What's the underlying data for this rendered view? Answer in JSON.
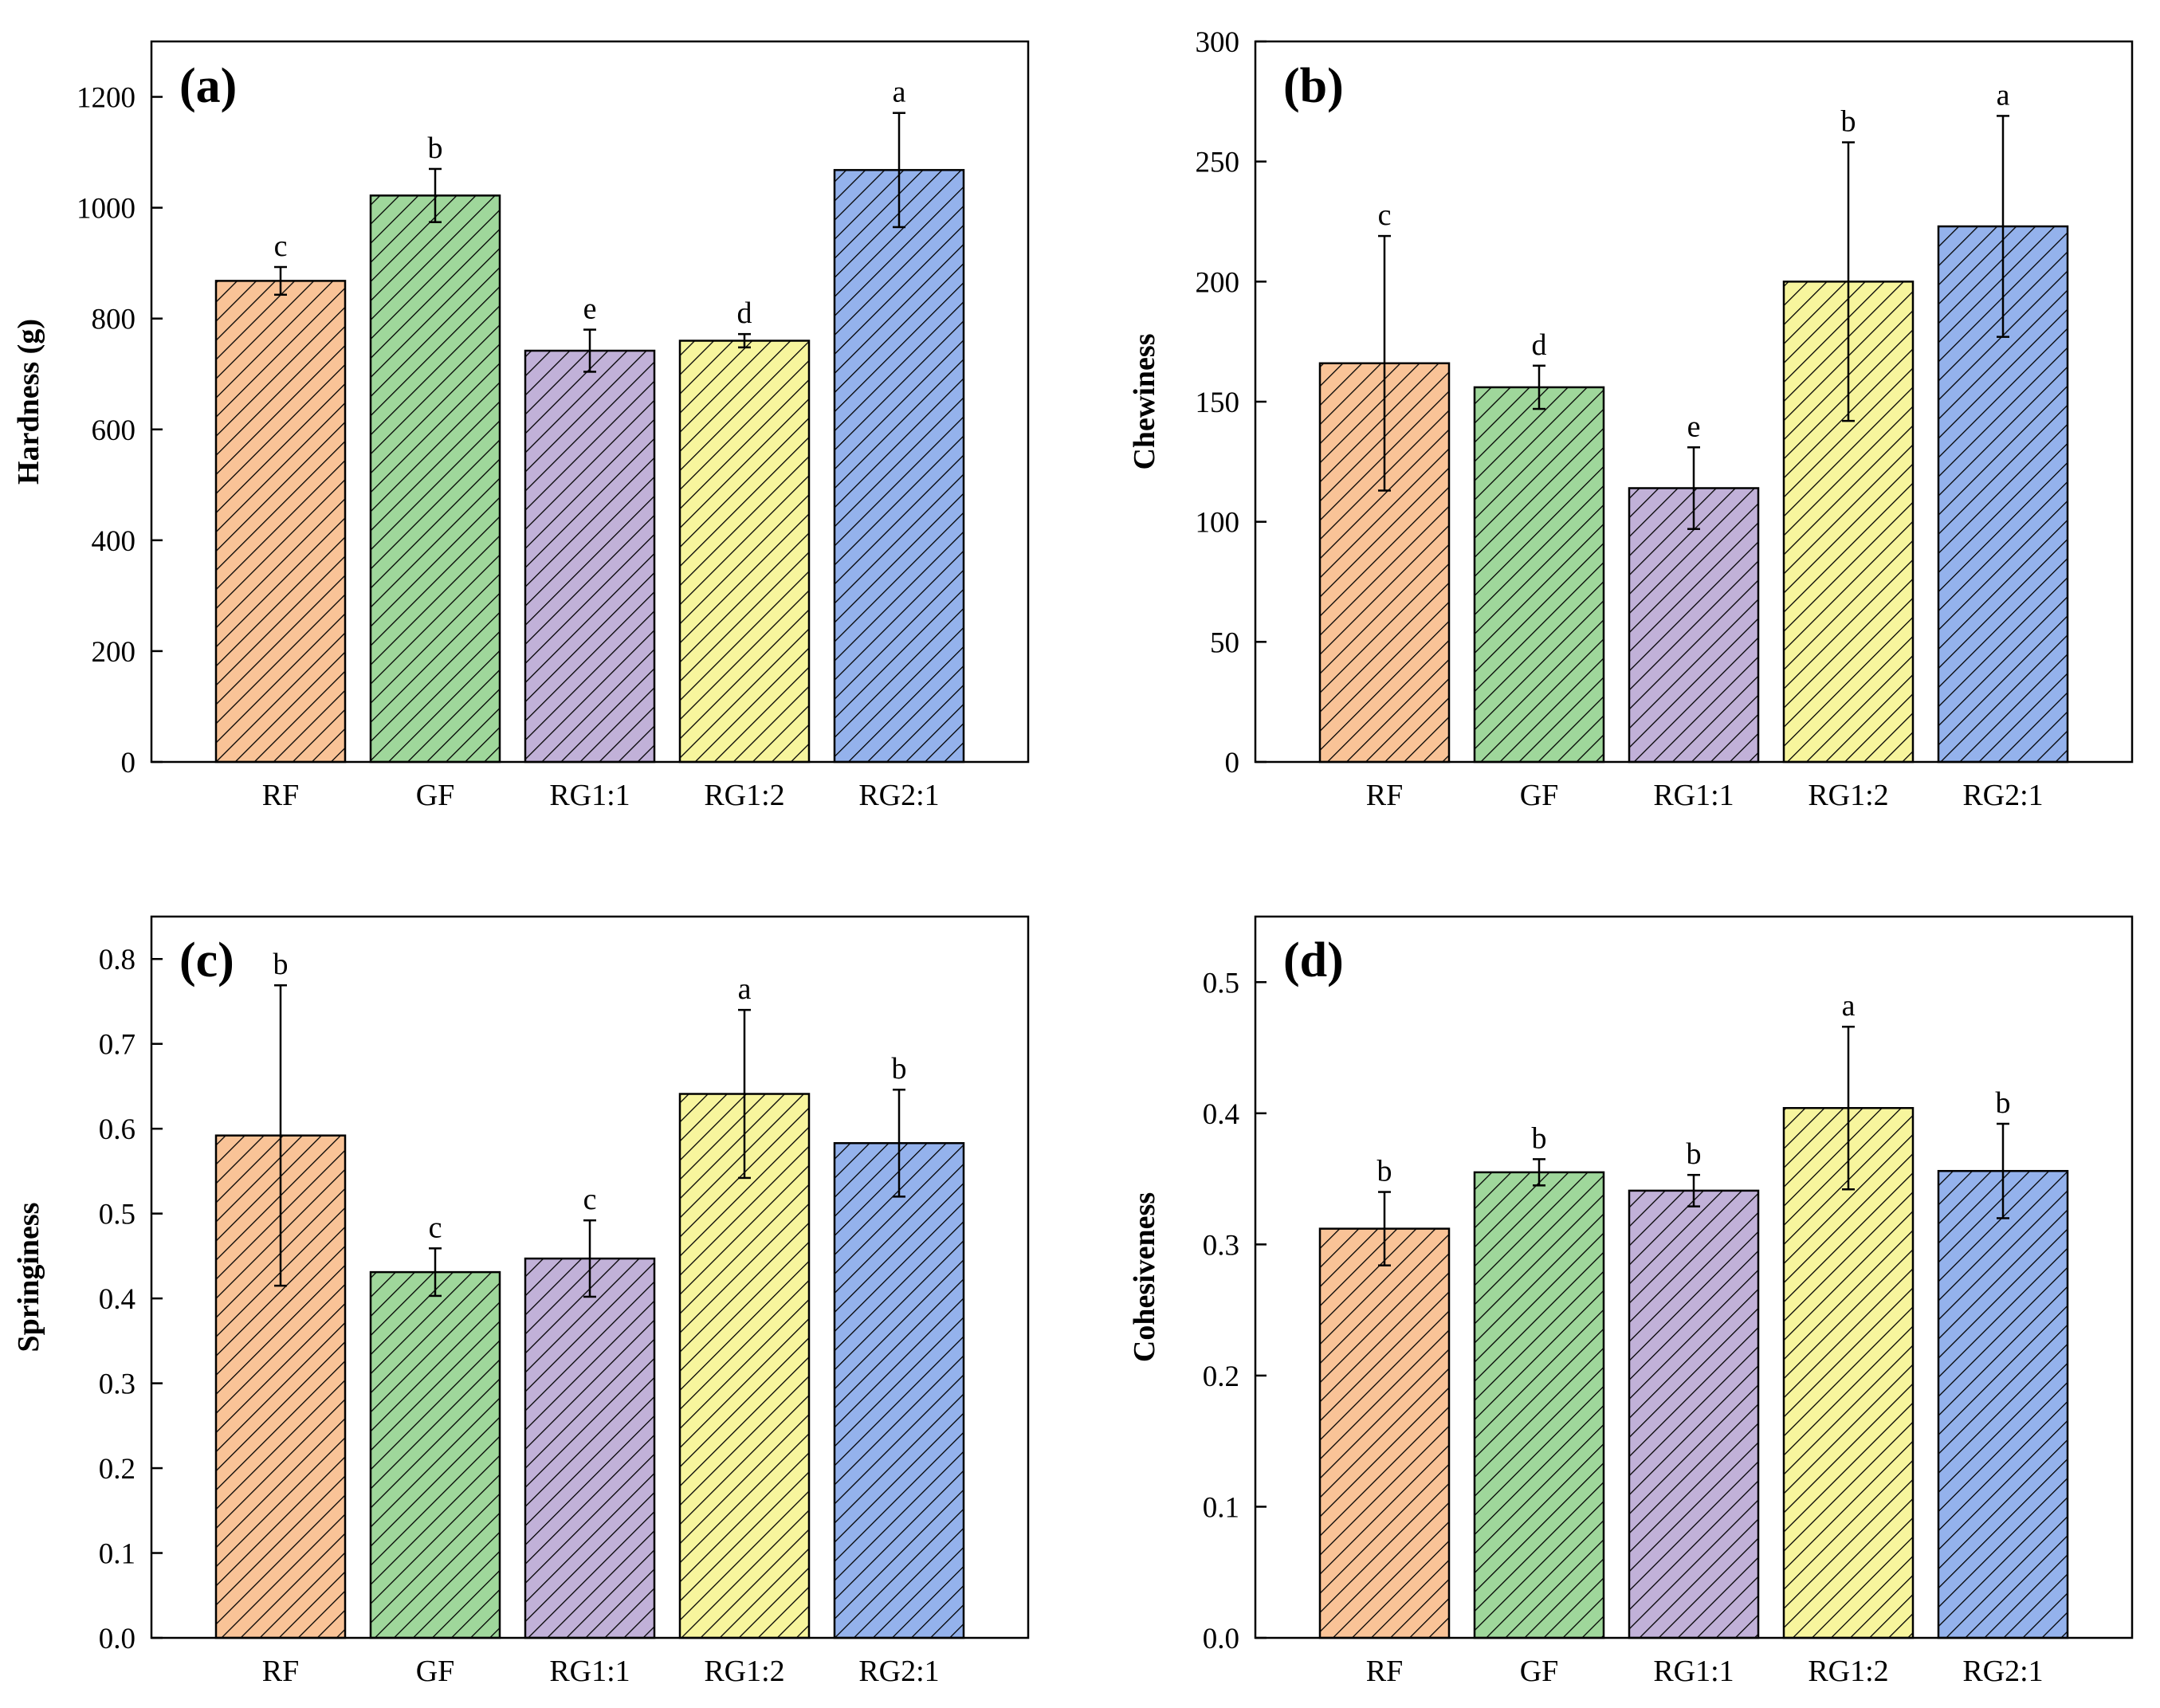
{
  "chart_data": [
    {
      "type": "bar",
      "panel_label": "(a)",
      "ylabel": "Hardness (g)",
      "ylim": [
        0,
        1300
      ],
      "yticks": [
        0,
        200,
        400,
        600,
        800,
        1000,
        1200
      ],
      "categories": [
        "RF",
        "GF",
        "RG1:1",
        "RG1:2",
        "RG2:1"
      ],
      "values": [
        868,
        1022,
        742,
        760,
        1068
      ],
      "errors": [
        25,
        48,
        38,
        12,
        103
      ],
      "significance": [
        "c",
        "b",
        "e",
        "d",
        "a"
      ]
    },
    {
      "type": "bar",
      "panel_label": "(b)",
      "ylabel": "Chewiness",
      "ylim": [
        0,
        300
      ],
      "yticks": [
        0,
        50,
        100,
        150,
        200,
        250,
        300
      ],
      "categories": [
        "RF",
        "GF",
        "RG1:1",
        "RG1:2",
        "RG2:1"
      ],
      "values": [
        166,
        156,
        114,
        200,
        223
      ],
      "errors": [
        53,
        9,
        17,
        58,
        46
      ],
      "significance": [
        "c",
        "d",
        "e",
        "b",
        "a"
      ]
    },
    {
      "type": "bar",
      "panel_label": "(c)",
      "ylabel": "Springiness",
      "ylim": [
        0,
        0.85
      ],
      "yticks": [
        0.0,
        0.1,
        0.2,
        0.3,
        0.4,
        0.5,
        0.6,
        0.7,
        0.8
      ],
      "categories": [
        "RF",
        "GF",
        "RG1:1",
        "RG1:2",
        "RG2:1"
      ],
      "values": [
        0.592,
        0.431,
        0.447,
        0.641,
        0.583
      ],
      "errors": [
        0.177,
        0.028,
        0.045,
        0.099,
        0.063
      ],
      "significance": [
        "b",
        "c",
        "c",
        "a",
        "b"
      ]
    },
    {
      "type": "bar",
      "panel_label": "(d)",
      "ylabel": "Cohesiveness",
      "ylim": [
        0,
        0.55
      ],
      "yticks": [
        0.0,
        0.1,
        0.2,
        0.3,
        0.4,
        0.5
      ],
      "categories": [
        "RF",
        "GF",
        "RG1:1",
        "RG1:2",
        "RG2:1"
      ],
      "values": [
        0.312,
        0.355,
        0.341,
        0.404,
        0.356
      ],
      "errors": [
        0.028,
        0.01,
        0.012,
        0.062,
        0.036
      ],
      "significance": [
        "b",
        "b",
        "b",
        "a",
        "b"
      ]
    }
  ],
  "style": {
    "bar_colors": [
      "#f9c397",
      "#9fd79b",
      "#c1b1d8",
      "#f7f59d",
      "#94b2ec"
    ],
    "hatch_color": "#000000",
    "axis_color": "#000000"
  }
}
